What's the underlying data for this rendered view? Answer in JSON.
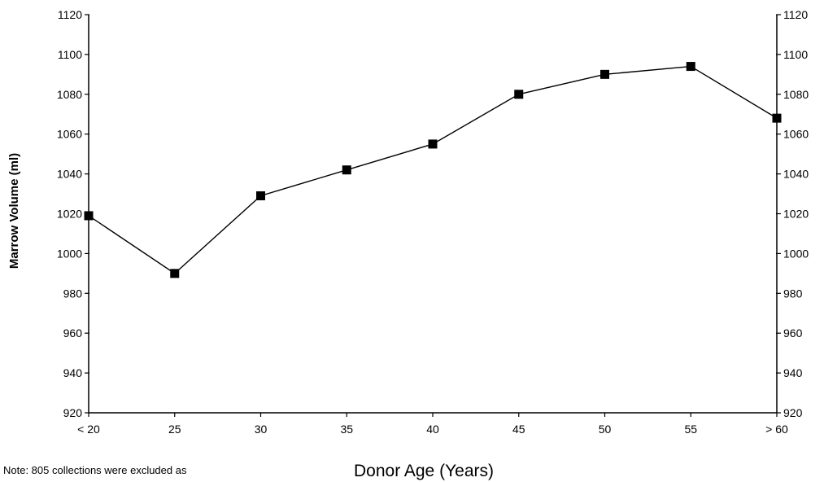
{
  "chart_data": {
    "type": "line",
    "categories": [
      "< 20",
      "25",
      "30",
      "35",
      "40",
      "45",
      "50",
      "55",
      "> 60"
    ],
    "series": [
      {
        "values": [
          1019,
          990,
          1029,
          1042,
          1055,
          1080,
          1090,
          1094,
          1068
        ]
      }
    ],
    "xlabel": "Donor Age (Years)",
    "ylabel": "Marrow Volume (ml)",
    "ylim": [
      920,
      1120
    ],
    "yticks": [
      920,
      940,
      960,
      980,
      1000,
      1020,
      1040,
      1060,
      1080,
      1100,
      1120
    ],
    "y_axis_right": true,
    "grid": false,
    "legend": "none",
    "line_color": "#000000",
    "marker": "square"
  },
  "note": "Note:  805 collections were excluded as"
}
